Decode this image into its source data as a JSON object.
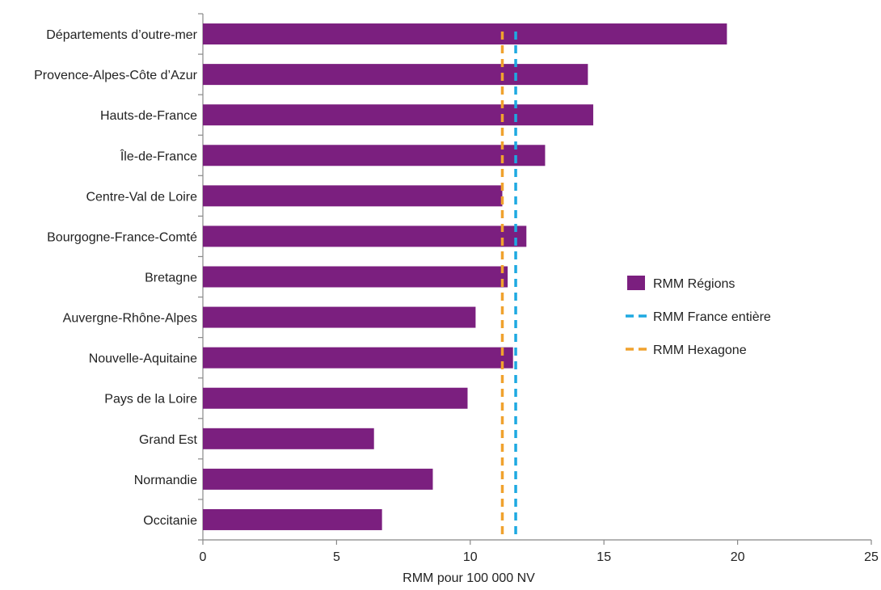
{
  "chart_data": {
    "type": "bar",
    "orientation": "horizontal",
    "categories": [
      "Départements d’outre-mer",
      "Provence-Alpes-Côte d’Azur",
      "Hauts-de-France",
      "Île-de-France",
      "Centre-Val de Loire",
      "Bourgogne-France-Comté",
      "Bretagne",
      "Auvergne-Rhône-Alpes",
      "Nouvelle-Aquitaine",
      "Pays de la Loire",
      "Grand Est",
      "Normandie",
      "Occitanie"
    ],
    "series": [
      {
        "name": "RMM Régions",
        "values": [
          19.6,
          14.4,
          14.6,
          12.8,
          11.2,
          12.1,
          11.4,
          10.2,
          11.6,
          9.9,
          6.4,
          8.6,
          6.7
        ],
        "color": "#7b1f7f"
      }
    ],
    "reference_lines": [
      {
        "name": "RMM France entière",
        "value": 11.7,
        "color": "#1ea9e1",
        "style": "dashed"
      },
      {
        "name": "RMM Hexagone",
        "value": 11.2,
        "color": "#f0a22e",
        "style": "dashed"
      }
    ],
    "xlabel": "RMM pour 100 000 NV",
    "ylabel": "",
    "xlim": [
      0,
      25
    ],
    "xticks": [
      0,
      5,
      10,
      15,
      20,
      25
    ],
    "grid": false,
    "legend_position": "right"
  }
}
